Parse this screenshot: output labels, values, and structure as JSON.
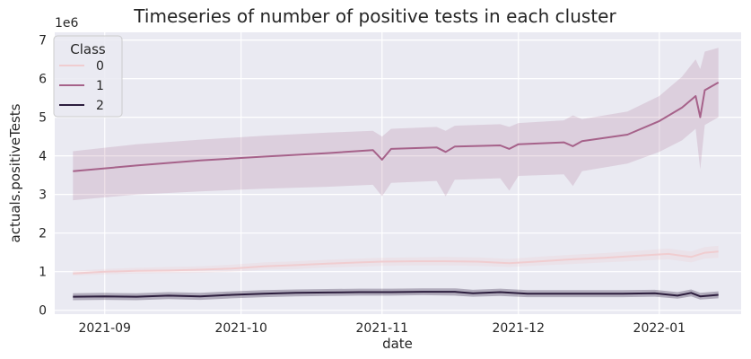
{
  "chart_data": {
    "type": "line",
    "title": "Timeseries of number of positive tests in each cluster",
    "xlabel": "date",
    "ylabel": "actuals.positiveTests",
    "y_multiplier_label": "1e6",
    "xlim": [
      "2021-08-21",
      "2022-01-19"
    ],
    "ylim": [
      -0.1,
      7.2
    ],
    "x_ticks": [
      {
        "date": "2021-09-01",
        "label": "2021-09"
      },
      {
        "date": "2021-10-01",
        "label": "2021-10"
      },
      {
        "date": "2021-11-01",
        "label": "2021-11"
      },
      {
        "date": "2021-12-01",
        "label": "2021-12"
      },
      {
        "date": "2022-01-01",
        "label": "2022-01"
      }
    ],
    "y_ticks": [
      0,
      1,
      2,
      3,
      4,
      5,
      6,
      7
    ],
    "grid": true,
    "legend": {
      "title": "Class",
      "placement": "top-left"
    },
    "series": [
      {
        "name": "0",
        "color": "#f0cdd0",
        "band_opacity": 0.25,
        "points": [
          {
            "x": "2021-08-25",
            "y": 0.95,
            "lo": 0.9,
            "hi": 1.02
          },
          {
            "x": "2021-09-01",
            "y": 1.0,
            "lo": 0.93,
            "hi": 1.07
          },
          {
            "x": "2021-09-08",
            "y": 1.02,
            "lo": 0.95,
            "hi": 1.1
          },
          {
            "x": "2021-09-15",
            "y": 1.03,
            "lo": 0.96,
            "hi": 1.12
          },
          {
            "x": "2021-09-22",
            "y": 1.05,
            "lo": 0.97,
            "hi": 1.14
          },
          {
            "x": "2021-09-29",
            "y": 1.08,
            "lo": 1.0,
            "hi": 1.18
          },
          {
            "x": "2021-10-06",
            "y": 1.14,
            "lo": 1.05,
            "hi": 1.24
          },
          {
            "x": "2021-10-13",
            "y": 1.17,
            "lo": 1.07,
            "hi": 1.27
          },
          {
            "x": "2021-10-20",
            "y": 1.21,
            "lo": 1.11,
            "hi": 1.31
          },
          {
            "x": "2021-10-27",
            "y": 1.24,
            "lo": 1.13,
            "hi": 1.34
          },
          {
            "x": "2021-11-01",
            "y": 1.26,
            "lo": 1.15,
            "hi": 1.36
          },
          {
            "x": "2021-11-08",
            "y": 1.27,
            "lo": 1.16,
            "hi": 1.37
          },
          {
            "x": "2021-11-15",
            "y": 1.27,
            "lo": 1.16,
            "hi": 1.38
          },
          {
            "x": "2021-11-22",
            "y": 1.26,
            "lo": 1.15,
            "hi": 1.37
          },
          {
            "x": "2021-11-29",
            "y": 1.22,
            "lo": 1.12,
            "hi": 1.33
          },
          {
            "x": "2021-12-06",
            "y": 1.27,
            "lo": 1.16,
            "hi": 1.39
          },
          {
            "x": "2021-12-13",
            "y": 1.32,
            "lo": 1.2,
            "hi": 1.44
          },
          {
            "x": "2021-12-20",
            "y": 1.36,
            "lo": 1.24,
            "hi": 1.48
          },
          {
            "x": "2021-12-27",
            "y": 1.41,
            "lo": 1.28,
            "hi": 1.54
          },
          {
            "x": "2022-01-03",
            "y": 1.46,
            "lo": 1.32,
            "hi": 1.6
          },
          {
            "x": "2022-01-08",
            "y": 1.38,
            "lo": 1.24,
            "hi": 1.52
          },
          {
            "x": "2022-01-11",
            "y": 1.49,
            "lo": 1.34,
            "hi": 1.64
          },
          {
            "x": "2022-01-14",
            "y": 1.52,
            "lo": 1.36,
            "hi": 1.67
          }
        ]
      },
      {
        "name": "1",
        "color": "#a6628a",
        "band_opacity": 0.2,
        "points": [
          {
            "x": "2021-08-25",
            "y": 3.6,
            "lo": 2.85,
            "hi": 4.12
          },
          {
            "x": "2021-09-08",
            "y": 3.75,
            "lo": 3.0,
            "hi": 4.3
          },
          {
            "x": "2021-09-22",
            "y": 3.88,
            "lo": 3.08,
            "hi": 4.42
          },
          {
            "x": "2021-10-06",
            "y": 3.98,
            "lo": 3.15,
            "hi": 4.52
          },
          {
            "x": "2021-10-20",
            "y": 4.07,
            "lo": 3.2,
            "hi": 4.6
          },
          {
            "x": "2021-10-30",
            "y": 4.15,
            "lo": 3.25,
            "hi": 4.65
          },
          {
            "x": "2021-11-01",
            "y": 3.9,
            "lo": 2.95,
            "hi": 4.5
          },
          {
            "x": "2021-11-03",
            "y": 4.18,
            "lo": 3.3,
            "hi": 4.7
          },
          {
            "x": "2021-11-13",
            "y": 4.22,
            "lo": 3.35,
            "hi": 4.75
          },
          {
            "x": "2021-11-15",
            "y": 4.1,
            "lo": 2.95,
            "hi": 4.65
          },
          {
            "x": "2021-11-17",
            "y": 4.24,
            "lo": 3.38,
            "hi": 4.78
          },
          {
            "x": "2021-11-27",
            "y": 4.27,
            "lo": 3.42,
            "hi": 4.82
          },
          {
            "x": "2021-11-29",
            "y": 4.18,
            "lo": 3.1,
            "hi": 4.75
          },
          {
            "x": "2021-12-01",
            "y": 4.3,
            "lo": 3.48,
            "hi": 4.85
          },
          {
            "x": "2021-12-11",
            "y": 4.35,
            "lo": 3.52,
            "hi": 4.92
          },
          {
            "x": "2021-12-13",
            "y": 4.25,
            "lo": 3.22,
            "hi": 5.05
          },
          {
            "x": "2021-12-15",
            "y": 4.38,
            "lo": 3.6,
            "hi": 4.95
          },
          {
            "x": "2021-12-25",
            "y": 4.55,
            "lo": 3.8,
            "hi": 5.15
          },
          {
            "x": "2022-01-01",
            "y": 4.9,
            "lo": 4.1,
            "hi": 5.55
          },
          {
            "x": "2022-01-06",
            "y": 5.25,
            "lo": 4.4,
            "hi": 6.05
          },
          {
            "x": "2022-01-09",
            "y": 5.55,
            "lo": 4.7,
            "hi": 6.5
          },
          {
            "x": "2022-01-10",
            "y": 5.0,
            "lo": 3.65,
            "hi": 6.25
          },
          {
            "x": "2022-01-11",
            "y": 5.7,
            "lo": 4.8,
            "hi": 6.7
          },
          {
            "x": "2022-01-14",
            "y": 5.9,
            "lo": 5.0,
            "hi": 6.8
          }
        ]
      },
      {
        "name": "2",
        "color": "#2d1e3e",
        "band_opacity": 0.3,
        "points": [
          {
            "x": "2021-08-25",
            "y": 0.35,
            "lo": 0.26,
            "hi": 0.44
          },
          {
            "x": "2021-09-01",
            "y": 0.36,
            "lo": 0.27,
            "hi": 0.45
          },
          {
            "x": "2021-09-08",
            "y": 0.35,
            "lo": 0.26,
            "hi": 0.44
          },
          {
            "x": "2021-09-15",
            "y": 0.38,
            "lo": 0.29,
            "hi": 0.47
          },
          {
            "x": "2021-09-22",
            "y": 0.36,
            "lo": 0.27,
            "hi": 0.45
          },
          {
            "x": "2021-09-29",
            "y": 0.4,
            "lo": 0.31,
            "hi": 0.49
          },
          {
            "x": "2021-10-06",
            "y": 0.43,
            "lo": 0.34,
            "hi": 0.52
          },
          {
            "x": "2021-10-13",
            "y": 0.45,
            "lo": 0.36,
            "hi": 0.54
          },
          {
            "x": "2021-10-20",
            "y": 0.46,
            "lo": 0.37,
            "hi": 0.55
          },
          {
            "x": "2021-10-27",
            "y": 0.47,
            "lo": 0.38,
            "hi": 0.56
          },
          {
            "x": "2021-11-03",
            "y": 0.47,
            "lo": 0.38,
            "hi": 0.56
          },
          {
            "x": "2021-11-10",
            "y": 0.48,
            "lo": 0.39,
            "hi": 0.57
          },
          {
            "x": "2021-11-17",
            "y": 0.48,
            "lo": 0.38,
            "hi": 0.57
          },
          {
            "x": "2021-11-21",
            "y": 0.44,
            "lo": 0.35,
            "hi": 0.53
          },
          {
            "x": "2021-11-27",
            "y": 0.47,
            "lo": 0.37,
            "hi": 0.56
          },
          {
            "x": "2021-12-03",
            "y": 0.43,
            "lo": 0.34,
            "hi": 0.52
          },
          {
            "x": "2021-12-10",
            "y": 0.43,
            "lo": 0.34,
            "hi": 0.52
          },
          {
            "x": "2021-12-17",
            "y": 0.43,
            "lo": 0.34,
            "hi": 0.52
          },
          {
            "x": "2021-12-24",
            "y": 0.43,
            "lo": 0.34,
            "hi": 0.52
          },
          {
            "x": "2021-12-31",
            "y": 0.44,
            "lo": 0.35,
            "hi": 0.53
          },
          {
            "x": "2022-01-05",
            "y": 0.38,
            "lo": 0.3,
            "hi": 0.47
          },
          {
            "x": "2022-01-08",
            "y": 0.45,
            "lo": 0.36,
            "hi": 0.54
          },
          {
            "x": "2022-01-10",
            "y": 0.36,
            "lo": 0.28,
            "hi": 0.45
          },
          {
            "x": "2022-01-14",
            "y": 0.4,
            "lo": 0.31,
            "hi": 0.49
          }
        ]
      }
    ]
  }
}
